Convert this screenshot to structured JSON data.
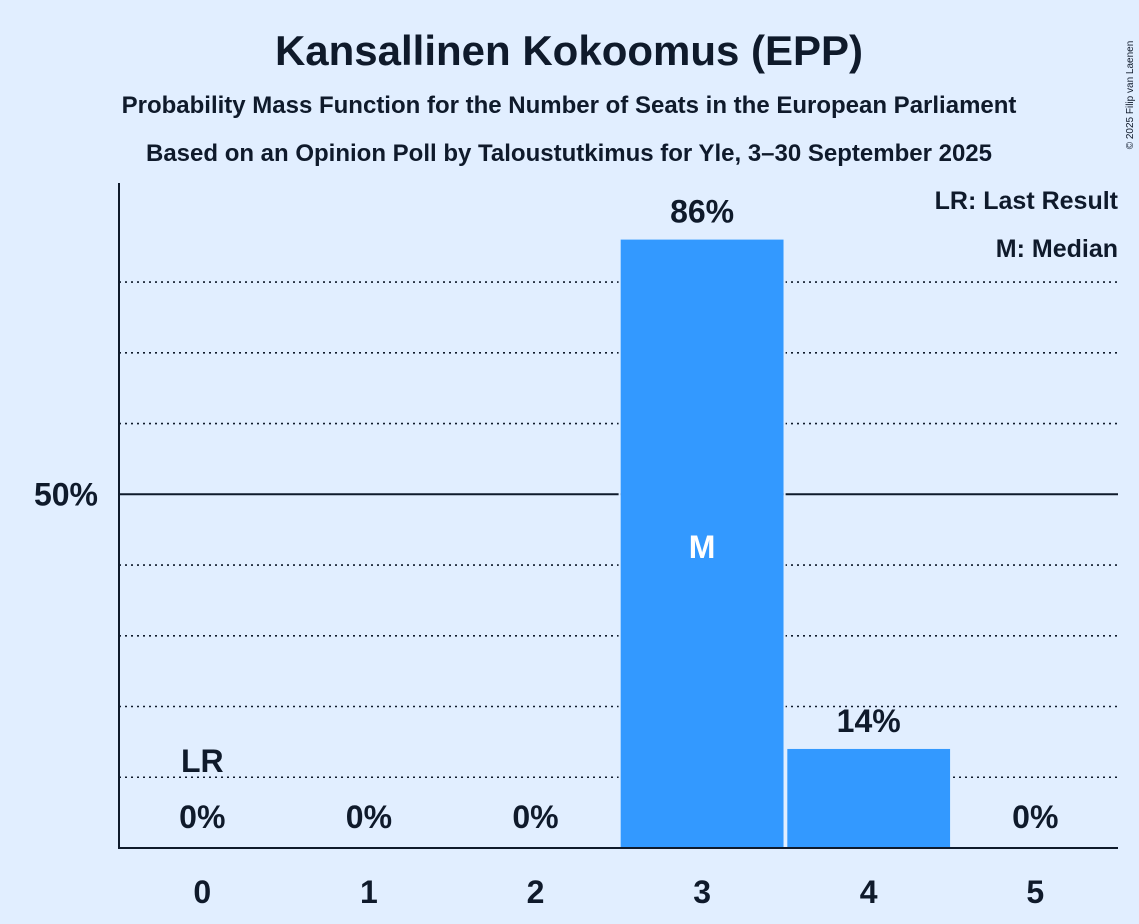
{
  "chart_data": {
    "type": "bar",
    "title": "Kansallinen Kokoomus (EPP)",
    "subtitle": "Probability Mass Function for the Number of Seats in the European Parliament",
    "subtitle2": "Based on an Opinion Poll by Taloustutkimus for Yle, 3–30 September 2025",
    "categories": [
      "0",
      "1",
      "2",
      "3",
      "4",
      "5"
    ],
    "values": [
      0,
      0,
      0,
      86,
      14,
      0
    ],
    "value_labels": [
      "0%",
      "0%",
      "0%",
      "86%",
      "14%",
      "0%"
    ],
    "ylim": [
      0,
      94
    ],
    "y_ticks": [
      {
        "value": 50,
        "label": "50%"
      }
    ],
    "minor_gridlines": [
      10,
      20,
      30,
      40,
      60,
      70,
      80
    ],
    "grid": true,
    "last_result": {
      "category": "0",
      "label": "LR"
    },
    "median": {
      "category": "3",
      "label": "M"
    },
    "legend": {
      "placement": "top-right",
      "entries": [
        "LR: Last Result",
        "M: Median"
      ]
    },
    "colors": {
      "bar": "#3399ff",
      "background": "#e1eeff",
      "text": "#0f1a2b",
      "median_text": "#ffffff"
    }
  },
  "copyright": "© 2025 Filip van Laenen"
}
